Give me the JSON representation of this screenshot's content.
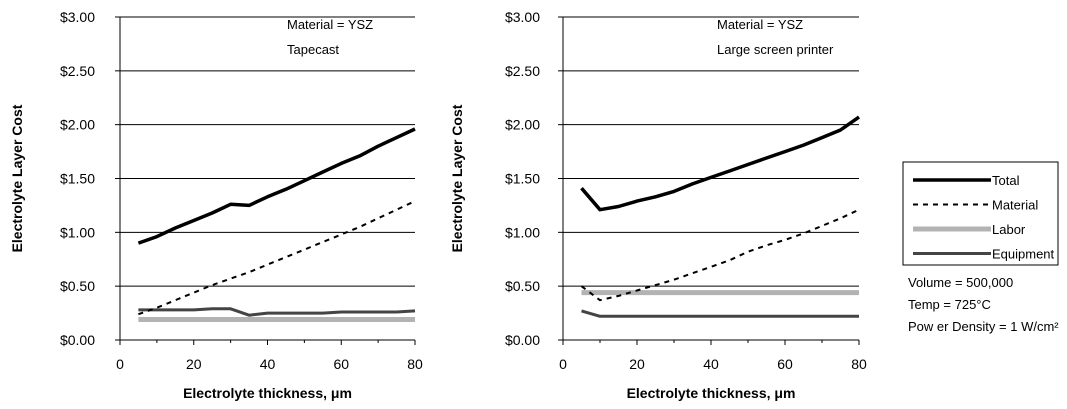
{
  "legend": {
    "entries": [
      {
        "name": "Total",
        "color": "#000000",
        "width": 3.5,
        "dash": ""
      },
      {
        "name": "Material",
        "color": "#000000",
        "width": 2,
        "dash": "5,5"
      },
      {
        "name": "Labor",
        "color": "#b3b3b3",
        "width": 5,
        "dash": ""
      },
      {
        "name": "Equipment",
        "color": "#444444",
        "width": 3,
        "dash": ""
      }
    ]
  },
  "notes": [
    "Volume = 500,000",
    "Temp = 725°C",
    "Pow er Density = 1 W/cm²"
  ],
  "chart_data": [
    {
      "type": "line",
      "xlabel": "Electrolyte thickness, μm",
      "ylabel": "Electrolyte Layer Cost",
      "xlim": [
        0,
        80
      ],
      "ylim": [
        0,
        3
      ],
      "xticks": [
        "0",
        "20",
        "40",
        "60",
        "80"
      ],
      "yticks": [
        "$0.00",
        "$0.50",
        "$1.00",
        "$1.50",
        "$2.00",
        "$2.50",
        "$3.00"
      ],
      "annotations": [
        "Material = YSZ",
        "Tapecast"
      ],
      "grid": true,
      "series": [
        {
          "name": "Total",
          "x": [
            5,
            10,
            15,
            20,
            25,
            30,
            35,
            40,
            45,
            50,
            55,
            60,
            65,
            70,
            75,
            80
          ],
          "values": [
            0.9,
            0.96,
            1.04,
            1.11,
            1.18,
            1.26,
            1.25,
            1.33,
            1.4,
            1.48,
            1.56,
            1.64,
            1.71,
            1.8,
            1.88,
            1.96
          ]
        },
        {
          "name": "Material",
          "x": [
            5,
            10,
            15,
            20,
            25,
            30,
            35,
            40,
            45,
            50,
            55,
            60,
            65,
            70,
            75,
            80
          ],
          "values": [
            0.24,
            0.3,
            0.37,
            0.44,
            0.51,
            0.57,
            0.63,
            0.7,
            0.77,
            0.84,
            0.91,
            0.98,
            1.05,
            1.13,
            1.21,
            1.29
          ]
        },
        {
          "name": "Labor",
          "x": [
            5,
            80
          ],
          "values": [
            0.19,
            0.19
          ]
        },
        {
          "name": "Equipment",
          "x": [
            5,
            10,
            15,
            20,
            25,
            30,
            35,
            40,
            45,
            50,
            55,
            60,
            65,
            70,
            75,
            80
          ],
          "values": [
            0.28,
            0.28,
            0.28,
            0.28,
            0.29,
            0.29,
            0.23,
            0.25,
            0.25,
            0.25,
            0.25,
            0.26,
            0.26,
            0.26,
            0.26,
            0.27
          ]
        }
      ]
    },
    {
      "type": "line",
      "xlabel": "Electrolyte thickness, μm",
      "ylabel": "Electrolyte Layer Cost",
      "xlim": [
        0,
        80
      ],
      "ylim": [
        0,
        3
      ],
      "xticks": [
        "0",
        "20",
        "40",
        "60",
        "80"
      ],
      "yticks": [
        "$0.00",
        "$0.50",
        "$1.00",
        "$1.50",
        "$2.00",
        "$2.50",
        "$3.00"
      ],
      "annotations": [
        "Material = YSZ",
        "Large screen printer"
      ],
      "grid": true,
      "series": [
        {
          "name": "Total",
          "x": [
            5,
            10,
            15,
            20,
            25,
            30,
            35,
            40,
            45,
            50,
            55,
            60,
            65,
            70,
            75,
            80
          ],
          "values": [
            1.41,
            1.21,
            1.24,
            1.29,
            1.33,
            1.38,
            1.45,
            1.51,
            1.57,
            1.63,
            1.69,
            1.75,
            1.81,
            1.88,
            1.95,
            2.07
          ]
        },
        {
          "name": "Material",
          "x": [
            5,
            10,
            15,
            20,
            25,
            30,
            35,
            40,
            45,
            50,
            55,
            60,
            65,
            70,
            75,
            80
          ],
          "values": [
            0.5,
            0.37,
            0.41,
            0.46,
            0.51,
            0.56,
            0.62,
            0.68,
            0.74,
            0.82,
            0.88,
            0.93,
            0.99,
            1.06,
            1.13,
            1.21
          ]
        },
        {
          "name": "Labor",
          "x": [
            5,
            80
          ],
          "values": [
            0.44,
            0.44
          ]
        },
        {
          "name": "Equipment",
          "x": [
            5,
            10,
            15,
            20,
            25,
            30,
            35,
            40,
            45,
            50,
            55,
            60,
            65,
            70,
            75,
            80
          ],
          "values": [
            0.27,
            0.22,
            0.22,
            0.22,
            0.22,
            0.22,
            0.22,
            0.22,
            0.22,
            0.22,
            0.22,
            0.22,
            0.22,
            0.22,
            0.22,
            0.22
          ]
        }
      ]
    }
  ]
}
